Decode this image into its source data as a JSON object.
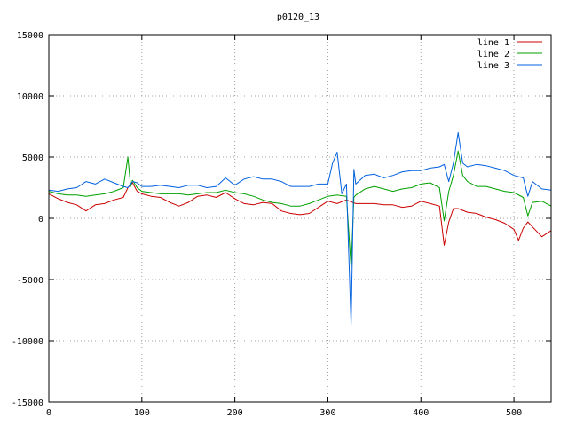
{
  "chart_data": {
    "type": "line",
    "title": "p0120_13",
    "xlabel": "",
    "ylabel": "",
    "xlim": [
      0,
      540
    ],
    "ylim": [
      -15000,
      15000
    ],
    "xticks": [
      0,
      100,
      200,
      300,
      400,
      500
    ],
    "yticks": [
      -15000,
      -10000,
      -5000,
      0,
      5000,
      10000,
      15000
    ],
    "grid": true,
    "legend_position": "top-right",
    "series": [
      {
        "name": "line 1",
        "color": "#cc0000",
        "points": [
          [
            0,
            2000
          ],
          [
            10,
            1600
          ],
          [
            20,
            1300
          ],
          [
            30,
            1100
          ],
          [
            40,
            600
          ],
          [
            50,
            1100
          ],
          [
            60,
            1200
          ],
          [
            70,
            1500
          ],
          [
            80,
            1700
          ],
          [
            85,
            2500
          ],
          [
            90,
            2900
          ],
          [
            95,
            2200
          ],
          [
            100,
            2000
          ],
          [
            110,
            1800
          ],
          [
            120,
            1700
          ],
          [
            130,
            1300
          ],
          [
            140,
            1000
          ],
          [
            150,
            1300
          ],
          [
            160,
            1800
          ],
          [
            170,
            1900
          ],
          [
            180,
            1700
          ],
          [
            190,
            2100
          ],
          [
            200,
            1600
          ],
          [
            210,
            1200
          ],
          [
            220,
            1100
          ],
          [
            230,
            1300
          ],
          [
            240,
            1200
          ],
          [
            250,
            600
          ],
          [
            260,
            400
          ],
          [
            270,
            300
          ],
          [
            280,
            400
          ],
          [
            290,
            900
          ],
          [
            300,
            1400
          ],
          [
            310,
            1200
          ],
          [
            320,
            1500
          ],
          [
            330,
            1200
          ],
          [
            340,
            1200
          ],
          [
            350,
            1200
          ],
          [
            360,
            1100
          ],
          [
            370,
            1100
          ],
          [
            380,
            900
          ],
          [
            390,
            1000
          ],
          [
            400,
            1400
          ],
          [
            410,
            1200
          ],
          [
            420,
            1000
          ],
          [
            425,
            -2200
          ],
          [
            430,
            -300
          ],
          [
            435,
            800
          ],
          [
            440,
            800
          ],
          [
            450,
            500
          ],
          [
            460,
            400
          ],
          [
            470,
            100
          ],
          [
            480,
            -100
          ],
          [
            490,
            -400
          ],
          [
            500,
            -900
          ],
          [
            505,
            -1800
          ],
          [
            510,
            -800
          ],
          [
            515,
            -300
          ],
          [
            520,
            -700
          ],
          [
            530,
            -1500
          ],
          [
            540,
            -1000
          ]
        ]
      },
      {
        "name": "line 2",
        "color": "#00a000",
        "points": [
          [
            0,
            2200
          ],
          [
            10,
            2000
          ],
          [
            20,
            1900
          ],
          [
            30,
            1900
          ],
          [
            40,
            1800
          ],
          [
            50,
            1900
          ],
          [
            60,
            2000
          ],
          [
            70,
            2200
          ],
          [
            80,
            2500
          ],
          [
            85,
            5000
          ],
          [
            88,
            2600
          ],
          [
            90,
            3100
          ],
          [
            95,
            2500
          ],
          [
            100,
            2200
          ],
          [
            110,
            2100
          ],
          [
            120,
            2000
          ],
          [
            130,
            2000
          ],
          [
            140,
            2000
          ],
          [
            150,
            1900
          ],
          [
            160,
            2000
          ],
          [
            170,
            2100
          ],
          [
            180,
            2100
          ],
          [
            190,
            2300
          ],
          [
            200,
            2100
          ],
          [
            210,
            2000
          ],
          [
            220,
            1800
          ],
          [
            230,
            1500
          ],
          [
            240,
            1300
          ],
          [
            250,
            1200
          ],
          [
            260,
            1000
          ],
          [
            270,
            1000
          ],
          [
            280,
            1200
          ],
          [
            290,
            1500
          ],
          [
            300,
            1800
          ],
          [
            310,
            1900
          ],
          [
            320,
            1800
          ],
          [
            325,
            -4000
          ],
          [
            328,
            1700
          ],
          [
            330,
            1900
          ],
          [
            340,
            2400
          ],
          [
            350,
            2600
          ],
          [
            360,
            2400
          ],
          [
            370,
            2200
          ],
          [
            380,
            2400
          ],
          [
            390,
            2500
          ],
          [
            400,
            2800
          ],
          [
            410,
            2900
          ],
          [
            420,
            2500
          ],
          [
            425,
            -200
          ],
          [
            430,
            2200
          ],
          [
            435,
            3500
          ],
          [
            440,
            5500
          ],
          [
            445,
            3500
          ],
          [
            450,
            3000
          ],
          [
            460,
            2600
          ],
          [
            470,
            2600
          ],
          [
            480,
            2400
          ],
          [
            490,
            2200
          ],
          [
            500,
            2100
          ],
          [
            510,
            1700
          ],
          [
            515,
            200
          ],
          [
            520,
            1300
          ],
          [
            530,
            1400
          ],
          [
            540,
            1000
          ]
        ]
      },
      {
        "name": "line 3",
        "color": "#0060e0",
        "points": [
          [
            0,
            2300
          ],
          [
            10,
            2200
          ],
          [
            20,
            2400
          ],
          [
            30,
            2500
          ],
          [
            40,
            3000
          ],
          [
            50,
            2800
          ],
          [
            60,
            3200
          ],
          [
            70,
            2900
          ],
          [
            80,
            2600
          ],
          [
            85,
            2500
          ],
          [
            90,
            3000
          ],
          [
            95,
            2900
          ],
          [
            100,
            2600
          ],
          [
            110,
            2600
          ],
          [
            120,
            2700
          ],
          [
            130,
            2600
          ],
          [
            140,
            2500
          ],
          [
            150,
            2700
          ],
          [
            160,
            2700
          ],
          [
            170,
            2500
          ],
          [
            180,
            2600
          ],
          [
            190,
            3300
          ],
          [
            200,
            2700
          ],
          [
            210,
            3200
          ],
          [
            220,
            3400
          ],
          [
            230,
            3200
          ],
          [
            240,
            3200
          ],
          [
            250,
            3000
          ],
          [
            260,
            2600
          ],
          [
            270,
            2600
          ],
          [
            280,
            2600
          ],
          [
            290,
            2800
          ],
          [
            300,
            2800
          ],
          [
            305,
            4500
          ],
          [
            310,
            5400
          ],
          [
            315,
            2000
          ],
          [
            320,
            2800
          ],
          [
            325,
            -8700
          ],
          [
            328,
            4000
          ],
          [
            330,
            2800
          ],
          [
            340,
            3500
          ],
          [
            350,
            3600
          ],
          [
            360,
            3300
          ],
          [
            370,
            3500
          ],
          [
            380,
            3800
          ],
          [
            390,
            3900
          ],
          [
            400,
            3900
          ],
          [
            410,
            4100
          ],
          [
            420,
            4200
          ],
          [
            425,
            4400
          ],
          [
            430,
            3000
          ],
          [
            435,
            4500
          ],
          [
            440,
            7000
          ],
          [
            445,
            4500
          ],
          [
            450,
            4200
          ],
          [
            460,
            4400
          ],
          [
            470,
            4300
          ],
          [
            480,
            4100
          ],
          [
            490,
            3900
          ],
          [
            500,
            3500
          ],
          [
            510,
            3300
          ],
          [
            515,
            1800
          ],
          [
            520,
            3000
          ],
          [
            530,
            2400
          ],
          [
            540,
            2300
          ]
        ]
      }
    ]
  }
}
